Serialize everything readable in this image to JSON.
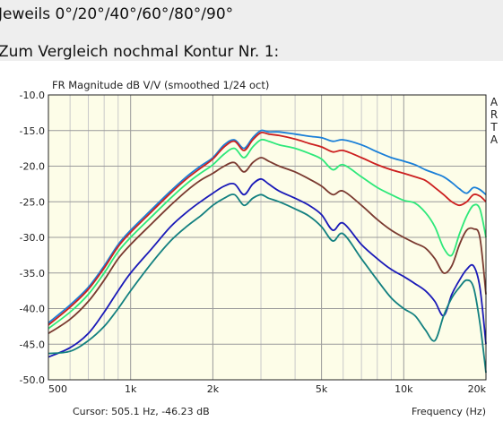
{
  "heading": {
    "line1": "Jeweils 0°/20°/40°/60°/80°/90°",
    "line2": "Zum Vergleich nochmal Kontur Nr. 1:"
  },
  "chart_data": {
    "type": "line",
    "title": "FR Magnitude dB V/V (smoothed 1/24 oct)",
    "brand": "ARTA",
    "cursor": "Cursor: 505.1 Hz, -46.23 dB",
    "xlabel": "Frequency (Hz)",
    "x_scale": "log",
    "xlim": [
      500,
      20000
    ],
    "ylim": [
      -50,
      -10
    ],
    "x_ticks": [
      {
        "value": 500,
        "label": "500"
      },
      {
        "value": 1000,
        "label": "1k"
      },
      {
        "value": 2000,
        "label": "2k"
      },
      {
        "value": 5000,
        "label": "5k"
      },
      {
        "value": 10000,
        "label": "10k"
      },
      {
        "value": 20000,
        "label": "20k"
      }
    ],
    "y_ticks": [
      {
        "value": -10,
        "label": "-10.0"
      },
      {
        "value": -15,
        "label": "-15.0"
      },
      {
        "value": -20,
        "label": "-20.0"
      },
      {
        "value": -25,
        "label": "-25.0"
      },
      {
        "value": -30,
        "label": "-30.0"
      },
      {
        "value": -35,
        "label": "-35.0"
      },
      {
        "value": -40,
        "label": "-40.0"
      },
      {
        "value": -45,
        "label": "-45.0"
      },
      {
        "value": -50,
        "label": "-50.0"
      }
    ],
    "grid": true,
    "plot_background": "#fdfde8",
    "series": [
      {
        "color": "#1a7fd8",
        "points": [
          [
            500,
            -42.0
          ],
          [
            600,
            -39.5
          ],
          [
            700,
            -37.0
          ],
          [
            800,
            -34.0
          ],
          [
            900,
            -31.0
          ],
          [
            1000,
            -29.0
          ],
          [
            1200,
            -26.0
          ],
          [
            1400,
            -23.5
          ],
          [
            1600,
            -21.5
          ],
          [
            1800,
            -20.0
          ],
          [
            2000,
            -18.8
          ],
          [
            2200,
            -17.0
          ],
          [
            2400,
            -16.3
          ],
          [
            2600,
            -17.5
          ],
          [
            2800,
            -16.0
          ],
          [
            3000,
            -15.0
          ],
          [
            3200,
            -15.2
          ],
          [
            3500,
            -15.2
          ],
          [
            4000,
            -15.5
          ],
          [
            4500,
            -15.8
          ],
          [
            5000,
            -16.0
          ],
          [
            5500,
            -16.5
          ],
          [
            6000,
            -16.3
          ],
          [
            7000,
            -17.0
          ],
          [
            8000,
            -18.0
          ],
          [
            9000,
            -18.8
          ],
          [
            10000,
            -19.3
          ],
          [
            11000,
            -19.8
          ],
          [
            12000,
            -20.5
          ],
          [
            13000,
            -21.0
          ],
          [
            14000,
            -21.5
          ],
          [
            15000,
            -22.3
          ],
          [
            16000,
            -23.2
          ],
          [
            17000,
            -23.8
          ],
          [
            18000,
            -23.0
          ],
          [
            19000,
            -23.3
          ],
          [
            20000,
            -24.0
          ]
        ]
      },
      {
        "color": "#cc1f1f",
        "points": [
          [
            500,
            -42.3
          ],
          [
            600,
            -39.8
          ],
          [
            700,
            -37.3
          ],
          [
            800,
            -34.3
          ],
          [
            900,
            -31.3
          ],
          [
            1000,
            -29.3
          ],
          [
            1200,
            -26.3
          ],
          [
            1400,
            -23.8
          ],
          [
            1600,
            -21.8
          ],
          [
            1800,
            -20.3
          ],
          [
            2000,
            -19.0
          ],
          [
            2200,
            -17.3
          ],
          [
            2400,
            -16.5
          ],
          [
            2600,
            -17.8
          ],
          [
            2800,
            -16.3
          ],
          [
            3000,
            -15.3
          ],
          [
            3200,
            -15.5
          ],
          [
            3500,
            -15.7
          ],
          [
            4000,
            -16.2
          ],
          [
            4500,
            -16.8
          ],
          [
            5000,
            -17.3
          ],
          [
            5500,
            -18.0
          ],
          [
            6000,
            -17.8
          ],
          [
            7000,
            -18.8
          ],
          [
            8000,
            -19.8
          ],
          [
            9000,
            -20.5
          ],
          [
            10000,
            -21.0
          ],
          [
            11000,
            -21.5
          ],
          [
            12000,
            -22.0
          ],
          [
            13000,
            -23.0
          ],
          [
            14000,
            -24.0
          ],
          [
            15000,
            -25.0
          ],
          [
            16000,
            -25.5
          ],
          [
            17000,
            -25.0
          ],
          [
            18000,
            -24.0
          ],
          [
            19000,
            -24.2
          ],
          [
            20000,
            -25.0
          ]
        ]
      },
      {
        "color": "#2ee87a",
        "points": [
          [
            500,
            -42.8
          ],
          [
            600,
            -40.5
          ],
          [
            700,
            -38.0
          ],
          [
            800,
            -35.0
          ],
          [
            900,
            -32.0
          ],
          [
            1000,
            -30.0
          ],
          [
            1200,
            -27.0
          ],
          [
            1400,
            -24.5
          ],
          [
            1600,
            -22.5
          ],
          [
            1800,
            -21.0
          ],
          [
            2000,
            -19.8
          ],
          [
            2200,
            -18.3
          ],
          [
            2400,
            -17.5
          ],
          [
            2600,
            -18.8
          ],
          [
            2800,
            -17.3
          ],
          [
            3000,
            -16.3
          ],
          [
            3200,
            -16.5
          ],
          [
            3500,
            -17.0
          ],
          [
            4000,
            -17.5
          ],
          [
            4500,
            -18.2
          ],
          [
            5000,
            -19.0
          ],
          [
            5500,
            -20.5
          ],
          [
            6000,
            -19.8
          ],
          [
            7000,
            -21.5
          ],
          [
            8000,
            -23.0
          ],
          [
            9000,
            -24.0
          ],
          [
            10000,
            -24.8
          ],
          [
            11000,
            -25.2
          ],
          [
            12000,
            -26.5
          ],
          [
            13000,
            -28.5
          ],
          [
            14000,
            -31.5
          ],
          [
            15000,
            -32.5
          ],
          [
            16000,
            -29.5
          ],
          [
            17000,
            -27.0
          ],
          [
            18000,
            -25.5
          ],
          [
            19000,
            -26.0
          ],
          [
            20000,
            -30.0
          ]
        ]
      },
      {
        "color": "#7a3a30",
        "points": [
          [
            500,
            -43.5
          ],
          [
            600,
            -41.5
          ],
          [
            700,
            -39.0
          ],
          [
            800,
            -36.0
          ],
          [
            900,
            -33.0
          ],
          [
            1000,
            -31.0
          ],
          [
            1200,
            -28.0
          ],
          [
            1400,
            -25.5
          ],
          [
            1600,
            -23.5
          ],
          [
            1800,
            -22.0
          ],
          [
            2000,
            -21.0
          ],
          [
            2200,
            -20.0
          ],
          [
            2400,
            -19.5
          ],
          [
            2600,
            -20.8
          ],
          [
            2800,
            -19.5
          ],
          [
            3000,
            -18.8
          ],
          [
            3200,
            -19.3
          ],
          [
            3500,
            -20.0
          ],
          [
            4000,
            -20.8
          ],
          [
            4500,
            -21.8
          ],
          [
            5000,
            -22.8
          ],
          [
            5500,
            -24.0
          ],
          [
            6000,
            -23.5
          ],
          [
            7000,
            -25.5
          ],
          [
            8000,
            -27.5
          ],
          [
            9000,
            -29.0
          ],
          [
            10000,
            -30.0
          ],
          [
            11000,
            -30.8
          ],
          [
            12000,
            -31.5
          ],
          [
            13000,
            -33.0
          ],
          [
            14000,
            -35.0
          ],
          [
            15000,
            -34.0
          ],
          [
            16000,
            -31.0
          ],
          [
            17000,
            -29.0
          ],
          [
            18000,
            -28.8
          ],
          [
            19000,
            -30.0
          ],
          [
            20000,
            -38.0
          ]
        ]
      },
      {
        "color": "#1a1ab8",
        "points": [
          [
            500,
            -46.8
          ],
          [
            600,
            -45.5
          ],
          [
            700,
            -43.5
          ],
          [
            800,
            -40.5
          ],
          [
            900,
            -37.5
          ],
          [
            1000,
            -35.0
          ],
          [
            1200,
            -31.5
          ],
          [
            1400,
            -28.5
          ],
          [
            1600,
            -26.5
          ],
          [
            1800,
            -25.0
          ],
          [
            2000,
            -23.8
          ],
          [
            2200,
            -22.8
          ],
          [
            2400,
            -22.5
          ],
          [
            2600,
            -24.0
          ],
          [
            2800,
            -22.5
          ],
          [
            3000,
            -21.8
          ],
          [
            3200,
            -22.5
          ],
          [
            3500,
            -23.5
          ],
          [
            4000,
            -24.5
          ],
          [
            4500,
            -25.5
          ],
          [
            5000,
            -26.8
          ],
          [
            5500,
            -29.0
          ],
          [
            6000,
            -28.0
          ],
          [
            7000,
            -31.0
          ],
          [
            8000,
            -33.0
          ],
          [
            9000,
            -34.5
          ],
          [
            10000,
            -35.5
          ],
          [
            11000,
            -36.5
          ],
          [
            12000,
            -37.5
          ],
          [
            13000,
            -39.0
          ],
          [
            14000,
            -41.0
          ],
          [
            15000,
            -38.0
          ],
          [
            16000,
            -36.0
          ],
          [
            17000,
            -34.5
          ],
          [
            18000,
            -34.0
          ],
          [
            19000,
            -37.0
          ],
          [
            20000,
            -45.0
          ]
        ]
      },
      {
        "color": "#138080",
        "points": [
          [
            500,
            -46.3
          ],
          [
            600,
            -46.0
          ],
          [
            700,
            -44.5
          ],
          [
            800,
            -42.5
          ],
          [
            900,
            -40.0
          ],
          [
            1000,
            -37.5
          ],
          [
            1200,
            -33.5
          ],
          [
            1400,
            -30.5
          ],
          [
            1600,
            -28.5
          ],
          [
            1800,
            -27.0
          ],
          [
            2000,
            -25.5
          ],
          [
            2200,
            -24.5
          ],
          [
            2400,
            -24.0
          ],
          [
            2600,
            -25.5
          ],
          [
            2800,
            -24.5
          ],
          [
            3000,
            -24.0
          ],
          [
            3200,
            -24.5
          ],
          [
            3500,
            -25.0
          ],
          [
            4000,
            -26.0
          ],
          [
            4500,
            -27.0
          ],
          [
            5000,
            -28.5
          ],
          [
            5500,
            -30.5
          ],
          [
            6000,
            -29.5
          ],
          [
            7000,
            -33.0
          ],
          [
            8000,
            -36.0
          ],
          [
            9000,
            -38.5
          ],
          [
            10000,
            -40.0
          ],
          [
            11000,
            -41.0
          ],
          [
            12000,
            -43.0
          ],
          [
            13000,
            -44.5
          ],
          [
            14000,
            -41.0
          ],
          [
            15000,
            -38.5
          ],
          [
            16000,
            -37.0
          ],
          [
            17000,
            -36.0
          ],
          [
            18000,
            -37.0
          ],
          [
            19000,
            -42.0
          ],
          [
            20000,
            -49.0
          ]
        ]
      }
    ]
  }
}
